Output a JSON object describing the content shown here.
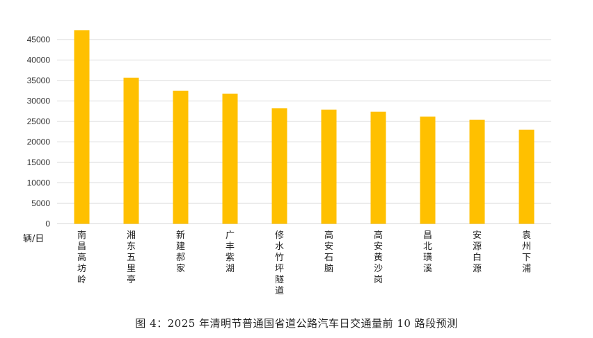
{
  "chart_data": {
    "type": "bar",
    "categories": [
      "南昌高坊岭",
      "湘东五里亭",
      "新建郝家",
      "广丰紫湖",
      "修水竹坪隧道",
      "高安石脑",
      "高安黄沙岗",
      "昌北璜溪",
      "安源白源",
      "袁州下浦"
    ],
    "values": [
      47300,
      35700,
      32500,
      31800,
      28200,
      27900,
      27400,
      26200,
      25400,
      23000
    ],
    "title": "图 4：2025 年清明节普通国省道公路汽车日交通量前 10 路段预测",
    "xlabel": "",
    "ylabel": "辆/日",
    "ylim": [
      0,
      50000
    ],
    "yticks": [
      0,
      5000,
      10000,
      15000,
      20000,
      25000,
      30000,
      35000,
      40000,
      45000
    ],
    "grid": true,
    "legend": "none",
    "bar_color": "#FFC000",
    "grid_color": "#D9D9D9"
  }
}
